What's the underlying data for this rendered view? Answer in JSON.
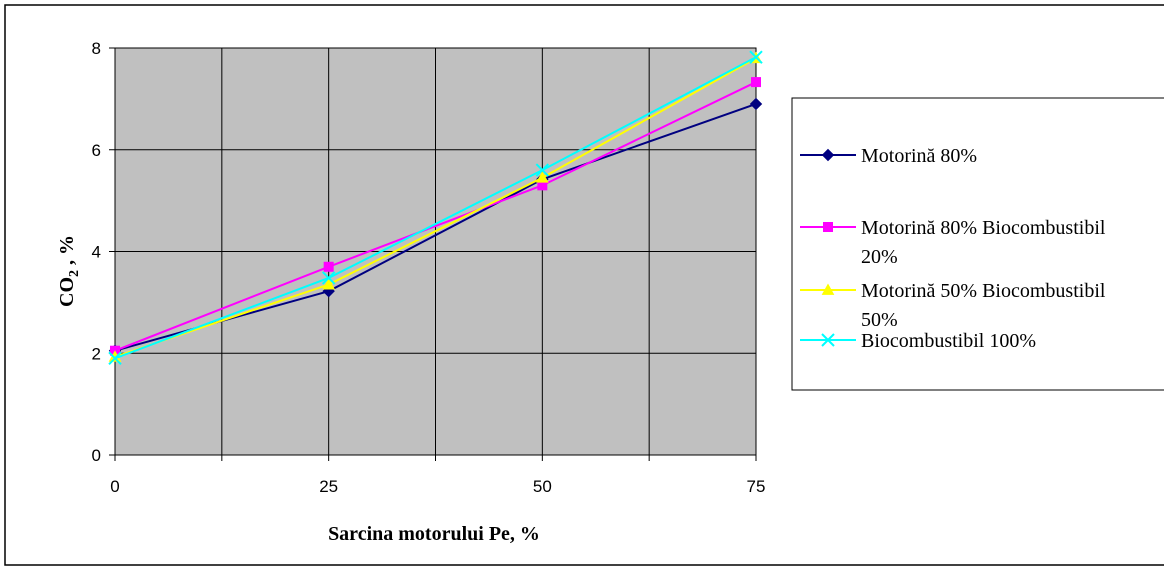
{
  "chart_data": {
    "type": "line",
    "title": "",
    "xlabel": "Sarcina motorului Pe, %",
    "ylabel_main": "CO",
    "ylabel_sub": "2",
    "ylabel_suffix": " , %",
    "x": [
      0,
      25,
      50,
      75
    ],
    "xlim": [
      0,
      75
    ],
    "ylim": [
      0,
      8
    ],
    "x_ticks": [
      "0",
      "25",
      "50",
      "75"
    ],
    "y_ticks": [
      "0",
      "2",
      "4",
      "6",
      "8"
    ],
    "grid": true,
    "plot_background": "#c0c0c0",
    "legend_position": "right",
    "series": [
      {
        "name_lines": [
          "Motorină 80%"
        ],
        "values": [
          2.05,
          3.22,
          5.42,
          6.9
        ],
        "color": "#000080",
        "marker": "diamond"
      },
      {
        "name_lines": [
          "Motorină 80% Biocombustibil",
          "20%"
        ],
        "values": [
          2.05,
          3.7,
          5.3,
          7.33
        ],
        "color": "#ff00ff",
        "marker": "square"
      },
      {
        "name_lines": [
          "Motorină 50% Biocombustibil",
          "50%"
        ],
        "values": [
          1.93,
          3.35,
          5.45,
          7.8
        ],
        "color": "#ffff00",
        "marker": "triangle"
      },
      {
        "name_lines": [
          "Biocombustibil 100%"
        ],
        "values": [
          1.9,
          3.48,
          5.6,
          7.82
        ],
        "color": "#00ffff",
        "marker": "x"
      }
    ]
  }
}
